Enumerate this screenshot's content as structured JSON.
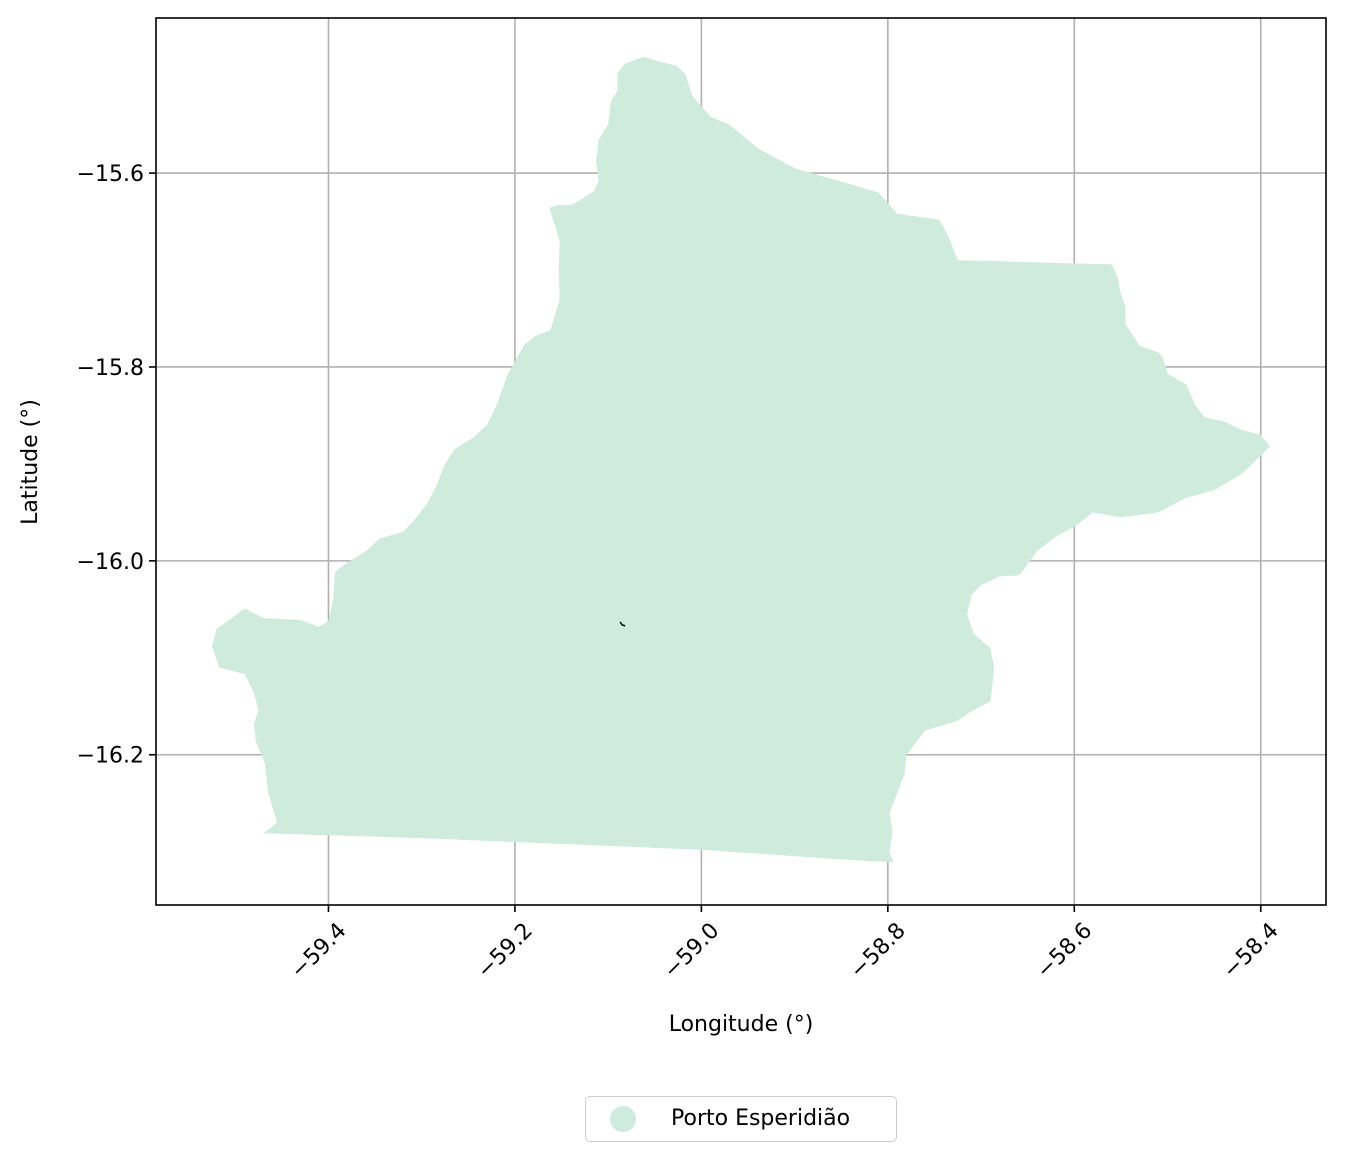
{
  "chart_data": {
    "type": "map",
    "xlabel": "Longitude (°)",
    "ylabel": "Latitude (°)",
    "xlim": [
      -59.585,
      -58.33
    ],
    "ylim": [
      -16.355,
      -15.44
    ],
    "xticks": [
      -59.4,
      -59.2,
      -59.0,
      -58.8,
      -58.6,
      -58.4
    ],
    "xtick_labels": [
      "−59.4",
      "−59.2",
      "−59.0",
      "−58.8",
      "−58.6",
      "−58.4"
    ],
    "yticks": [
      -15.6,
      -15.8,
      -16.0,
      -16.2
    ],
    "ytick_labels": [
      "−15.6",
      "−15.8",
      "−16.0",
      "−16.2"
    ],
    "grid": true,
    "legend_position": "bottom-center",
    "fill_color": "#cfebdd",
    "regions": [
      {
        "name": "Porto Esperidião",
        "outline": [
          [
            -59.048,
            -15.484
          ],
          [
            -59.027,
            -15.489
          ],
          [
            -59.017,
            -15.498
          ],
          [
            -59.01,
            -15.52
          ],
          [
            -58.99,
            -15.542
          ],
          [
            -58.97,
            -15.55
          ],
          [
            -58.94,
            -15.574
          ],
          [
            -58.9,
            -15.595
          ],
          [
            -58.86,
            -15.606
          ],
          [
            -58.81,
            -15.62
          ],
          [
            -58.79,
            -15.642
          ],
          [
            -58.745,
            -15.648
          ],
          [
            -58.735,
            -15.665
          ],
          [
            -58.725,
            -15.69
          ],
          [
            -58.68,
            -15.691
          ],
          [
            -58.61,
            -15.693
          ],
          [
            -58.56,
            -15.694
          ],
          [
            -58.554,
            -15.706
          ],
          [
            -58.55,
            -15.725
          ],
          [
            -58.545,
            -15.738
          ],
          [
            -58.545,
            -15.756
          ],
          [
            -58.53,
            -15.778
          ],
          [
            -58.51,
            -15.785
          ],
          [
            -58.505,
            -15.79
          ],
          [
            -58.5,
            -15.807
          ],
          [
            -58.48,
            -15.818
          ],
          [
            -58.47,
            -15.84
          ],
          [
            -58.46,
            -15.852
          ],
          [
            -58.44,
            -15.856
          ],
          [
            -58.42,
            -15.865
          ],
          [
            -58.4,
            -15.87
          ],
          [
            -58.39,
            -15.882
          ],
          [
            -58.42,
            -15.91
          ],
          [
            -58.45,
            -15.927
          ],
          [
            -58.48,
            -15.935
          ],
          [
            -58.51,
            -15.95
          ],
          [
            -58.55,
            -15.955
          ],
          [
            -58.58,
            -15.95
          ],
          [
            -58.6,
            -15.965
          ],
          [
            -58.62,
            -15.975
          ],
          [
            -58.64,
            -15.99
          ],
          [
            -58.655,
            -16.01
          ],
          [
            -58.66,
            -16.015
          ],
          [
            -58.68,
            -16.016
          ],
          [
            -58.7,
            -16.025
          ],
          [
            -58.71,
            -16.035
          ],
          [
            -58.715,
            -16.055
          ],
          [
            -58.708,
            -16.075
          ],
          [
            -58.69,
            -16.09
          ],
          [
            -58.686,
            -16.11
          ],
          [
            -58.688,
            -16.13
          ],
          [
            -58.69,
            -16.145
          ],
          [
            -58.71,
            -16.155
          ],
          [
            -58.725,
            -16.165
          ],
          [
            -58.76,
            -16.175
          ],
          [
            -58.78,
            -16.2
          ],
          [
            -58.782,
            -16.22
          ],
          [
            -58.79,
            -16.24
          ],
          [
            -58.798,
            -16.26
          ],
          [
            -58.795,
            -16.28
          ],
          [
            -58.798,
            -16.3
          ],
          [
            -58.794,
            -16.311
          ],
          [
            -58.85,
            -16.308
          ],
          [
            -59.0,
            -16.298
          ],
          [
            -59.2,
            -16.29
          ],
          [
            -59.3,
            -16.286
          ],
          [
            -59.47,
            -16.281
          ],
          [
            -59.455,
            -16.27
          ],
          [
            -59.465,
            -16.238
          ],
          [
            -59.468,
            -16.21
          ],
          [
            -59.478,
            -16.186
          ],
          [
            -59.48,
            -16.168
          ],
          [
            -59.475,
            -16.154
          ],
          [
            -59.48,
            -16.136
          ],
          [
            -59.49,
            -16.117
          ],
          [
            -59.517,
            -16.11
          ],
          [
            -59.525,
            -16.088
          ],
          [
            -59.52,
            -16.07
          ],
          [
            -59.505,
            -16.06
          ],
          [
            -59.49,
            -16.049
          ],
          [
            -59.47,
            -16.059
          ],
          [
            -59.43,
            -16.061
          ],
          [
            -59.41,
            -16.068
          ],
          [
            -59.4,
            -16.062
          ],
          [
            -59.395,
            -16.04
          ],
          [
            -59.393,
            -16.012
          ],
          [
            -59.385,
            -16.005
          ],
          [
            -59.36,
            -15.99
          ],
          [
            -59.345,
            -15.977
          ],
          [
            -59.32,
            -15.97
          ],
          [
            -59.31,
            -15.96
          ],
          [
            -59.295,
            -15.942
          ],
          [
            -59.285,
            -15.924
          ],
          [
            -59.275,
            -15.9
          ],
          [
            -59.265,
            -15.885
          ],
          [
            -59.245,
            -15.873
          ],
          [
            -59.23,
            -15.86
          ],
          [
            -59.22,
            -15.84
          ],
          [
            -59.208,
            -15.808
          ],
          [
            -59.19,
            -15.777
          ],
          [
            -59.178,
            -15.768
          ],
          [
            -59.162,
            -15.762
          ],
          [
            -59.152,
            -15.73
          ],
          [
            -59.153,
            -15.7
          ],
          [
            -59.152,
            -15.67
          ],
          [
            -59.163,
            -15.636
          ],
          [
            -59.155,
            -15.633
          ],
          [
            -59.14,
            -15.633
          ],
          [
            -59.13,
            -15.628
          ],
          [
            -59.115,
            -15.618
          ],
          [
            -59.11,
            -15.608
          ],
          [
            -59.113,
            -15.588
          ],
          [
            -59.11,
            -15.565
          ],
          [
            -59.1,
            -15.55
          ],
          [
            -59.097,
            -15.526
          ],
          [
            -59.09,
            -15.515
          ],
          [
            -59.09,
            -15.497
          ],
          [
            -59.082,
            -15.487
          ],
          [
            -59.062,
            -15.48
          ],
          [
            -59.048,
            -15.484
          ]
        ]
      }
    ],
    "marker": {
      "lon": -59.085,
      "lat": -16.065
    },
    "legend": [
      {
        "label": "Porto Esperidião",
        "color": "#cfebdd"
      }
    ]
  }
}
